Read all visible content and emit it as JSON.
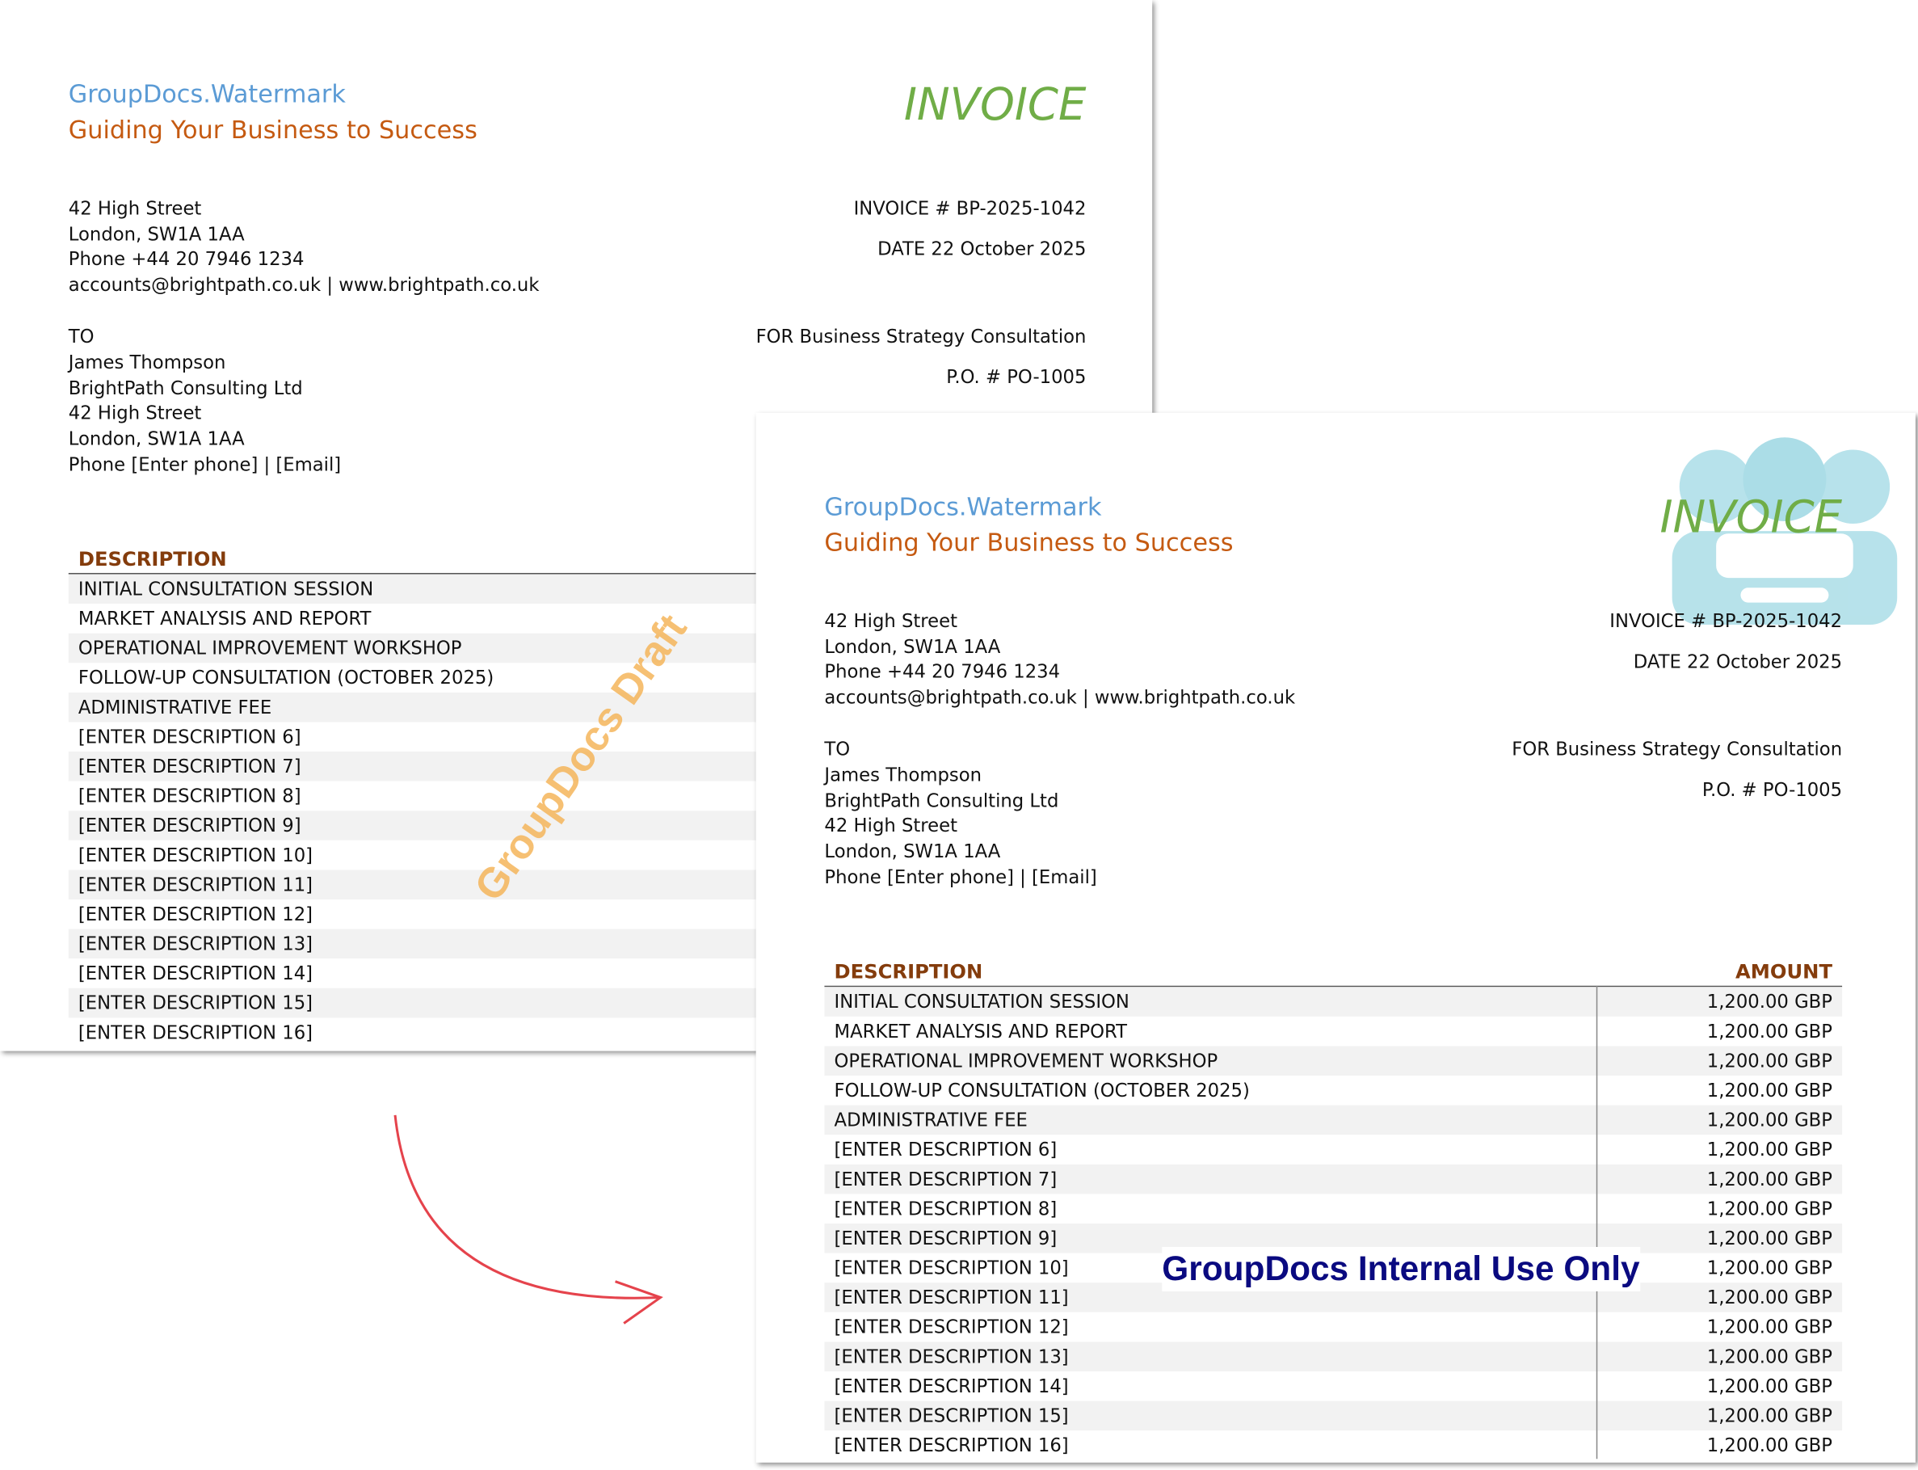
{
  "invoice": {
    "company": "GroupDocs.Watermark",
    "tagline": "Guiding Your Business to Success",
    "title": "INVOICE",
    "sender_lines": [
      "42 High Street",
      "London, SW1A 1AA",
      "Phone +44 20 7946 1234",
      "accounts@brightpath.co.uk | www.brightpath.co.uk"
    ],
    "invoice_number": "INVOICE # BP-2025-1042",
    "date": "DATE 22 October 2025",
    "to_label": "TO",
    "recipient_lines": [
      "James Thompson",
      "BrightPath Consulting Ltd",
      "42 High Street",
      "London, SW1A 1AA",
      "Phone [Enter phone] | [Email]"
    ],
    "for": "FOR Business Strategy Consultation",
    "po_number": "P.O. # PO-1005",
    "table": {
      "headers": [
        "DESCRIPTION",
        "AMOUNT"
      ],
      "rows": [
        [
          "INITIAL CONSULTATION SESSION",
          "1,200.00 GBP"
        ],
        [
          "MARKET ANALYSIS AND REPORT",
          "1,200.00 GBP"
        ],
        [
          "OPERATIONAL IMPROVEMENT WORKSHOP",
          "1,200.00 GBP"
        ],
        [
          "FOLLOW-UP CONSULTATION (OCTOBER 2025)",
          "1,200.00 GBP"
        ],
        [
          "ADMINISTRATIVE FEE",
          "1,200.00 GBP"
        ],
        [
          "[ENTER DESCRIPTION 6]",
          "1,200.00 GBP"
        ],
        [
          "[ENTER DESCRIPTION 7]",
          "1,200.00 GBP"
        ],
        [
          "[ENTER DESCRIPTION 8]",
          "1,200.00 GBP"
        ],
        [
          "[ENTER DESCRIPTION 9]",
          "1,200.00 GBP"
        ],
        [
          "[ENTER DESCRIPTION 10]",
          "1,200.00 GBP"
        ],
        [
          "[ENTER DESCRIPTION 11]",
          "1,200.00 GBP"
        ],
        [
          "[ENTER DESCRIPTION 12]",
          "1,200.00 GBP"
        ],
        [
          "[ENTER DESCRIPTION 13]",
          "1,200.00 GBP"
        ],
        [
          "[ENTER DESCRIPTION 14]",
          "1,200.00 GBP"
        ],
        [
          "[ENTER DESCRIPTION 15]",
          "1,200.00 GBP"
        ],
        [
          "[ENTER DESCRIPTION 16]",
          "1,200.00 GBP"
        ]
      ]
    }
  },
  "watermarks": {
    "original": "GroupDocs Draft",
    "result": "GroupDocs Internal Use Only"
  }
}
